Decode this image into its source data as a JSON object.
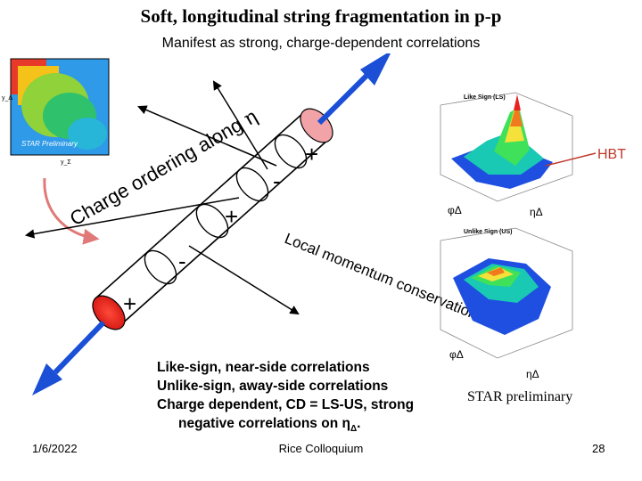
{
  "title": "Soft, longitudinal string fragmentation in p-p",
  "subtitle": "Manifest as strong, charge-dependent correlations",
  "diagram": {
    "ordering_label": "Charge ordering along",
    "eta_symbol": "η",
    "local_momentum_label": "Local momentum conservation",
    "charges": [
      "+",
      "-",
      "+",
      "-",
      "+"
    ],
    "hbt_label": "HBT",
    "ls_plot_title": "Like Sign (LS)",
    "us_plot_title": "Unlike Sign (US)",
    "phi_axis": "φΔ",
    "eta_axis": "ηΔ",
    "inset_label": "STAR Preliminary",
    "inset_axis_x": "y_Σ",
    "inset_axis_y": "y_Δ"
  },
  "bullets": {
    "line1": "Like-sign, near-side correlations",
    "line2": "Unlike-sign, away-side correlations",
    "line3": "Charge dependent, CD = LS-US, strong",
    "line4": "negative correlations on η",
    "line4_sub": "Δ",
    "line4_end": "."
  },
  "star_preliminary": "STAR preliminary",
  "footer": {
    "date": "1/6/2022",
    "center": "Rice Colloquium",
    "page": "28"
  },
  "colors": {
    "arrow_blue": "#1a4fd6",
    "cap_red": "#e8271f",
    "cap_pink": "#f2a3a8",
    "hbt_line": "#c0392b"
  }
}
